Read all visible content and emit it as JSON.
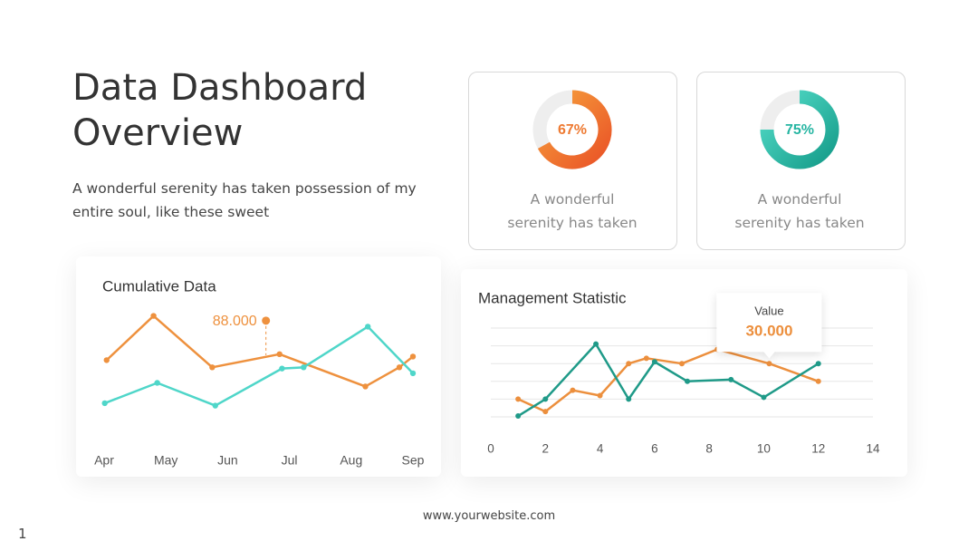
{
  "header": {
    "title_lines": [
      "Data Dashboard",
      "Overview"
    ],
    "subtitle": "A wonderful serenity has taken possession of my entire soul, like these sweet"
  },
  "chart_data": [
    {
      "type": "donut",
      "values": [
        67
      ],
      "value_labels": [
        "67%"
      ],
      "caption": "A wonderful serenity has taken",
      "color": "#ee7a32"
    },
    {
      "type": "donut",
      "values": [
        75
      ],
      "value_labels": [
        "75%"
      ],
      "caption": "A wonderful serenity has taken",
      "color": "#26b5a2"
    },
    {
      "type": "line",
      "title": "Cumulative Data",
      "xlim": [
        0,
        5
      ],
      "ylim": [
        0,
        100
      ],
      "xticks": [
        {
          "value": 0,
          "label": "Apr"
        },
        {
          "value": 1,
          "label": "May"
        },
        {
          "value": 2,
          "label": "Jun"
        },
        {
          "value": 3,
          "label": "Jul"
        },
        {
          "value": 4,
          "label": "Aug"
        },
        {
          "value": 5,
          "label": "Sep"
        }
      ],
      "series": [
        {
          "color": "#ee913e",
          "x": [
            0.04,
            0.8,
            1.75,
            2.84,
            4.23,
            4.78,
            5.0
          ],
          "values": [
            55,
            92,
            49,
            60,
            33,
            49,
            58
          ]
        },
        {
          "color": "#4fd6c9",
          "x": [
            0.01,
            0.86,
            1.8,
            2.88,
            3.23,
            4.27,
            5.0
          ],
          "values": [
            19,
            36,
            17,
            48,
            49,
            83,
            44
          ]
        }
      ],
      "annotations": [
        {
          "x": 2.62,
          "value": 88,
          "label": "88.000"
        }
      ]
    },
    {
      "type": "line",
      "title": "Management Statistic",
      "xlim": [
        0,
        14
      ],
      "ylim": [
        0,
        50
      ],
      "xticks": [
        0,
        2,
        4,
        6,
        8,
        10,
        12,
        14
      ],
      "grid": true,
      "series": [
        {
          "color": "#ec8f3d",
          "x": [
            1,
            2,
            3,
            4,
            5.05,
            5.7,
            7,
            8.3,
            10.2,
            12
          ],
          "values": [
            10,
            3,
            15,
            12,
            30,
            33,
            30,
            38,
            30,
            20
          ]
        },
        {
          "color": "#1f9a88",
          "x": [
            1,
            2,
            3.85,
            5.05,
            6,
            7.2,
            8.8,
            10,
            12
          ],
          "values": [
            0.5,
            10,
            41,
            10,
            31,
            20,
            21,
            11,
            30
          ]
        }
      ],
      "tooltip": {
        "title": "Value",
        "x": 10.2,
        "value": 30,
        "label": "30.000"
      }
    }
  ],
  "footer": {
    "website": "www.yourwebsite.com",
    "page_number": "1"
  }
}
